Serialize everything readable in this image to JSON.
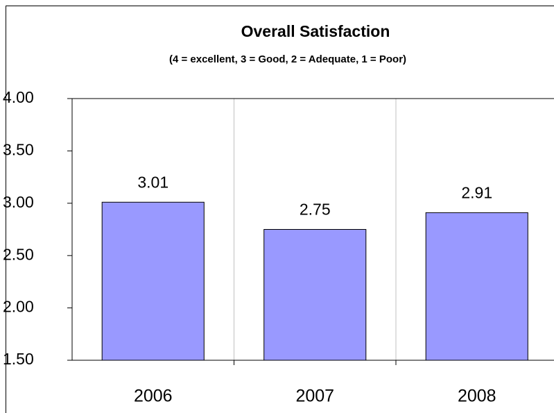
{
  "chart_data": {
    "type": "bar",
    "title": "Overall Satisfaction",
    "subtitle": "(4 = excellent, 3 = Good, 2 = Adequate, 1 = Poor)",
    "categories": [
      "2006",
      "2007",
      "2008"
    ],
    "values": [
      3.01,
      2.75,
      2.91
    ],
    "color": "#9999ff",
    "ylim": [
      1.5,
      4.0
    ],
    "yticks": [
      {
        "value": 1.5,
        "label": "1.50"
      },
      {
        "value": 2,
        "label": "2.00"
      },
      {
        "value": 2.5,
        "label": "2.50"
      },
      {
        "value": 3,
        "label": "3.00"
      },
      {
        "value": 3.5,
        "label": "3.50"
      },
      {
        "value": 4,
        "label": "4.00"
      }
    ]
  }
}
